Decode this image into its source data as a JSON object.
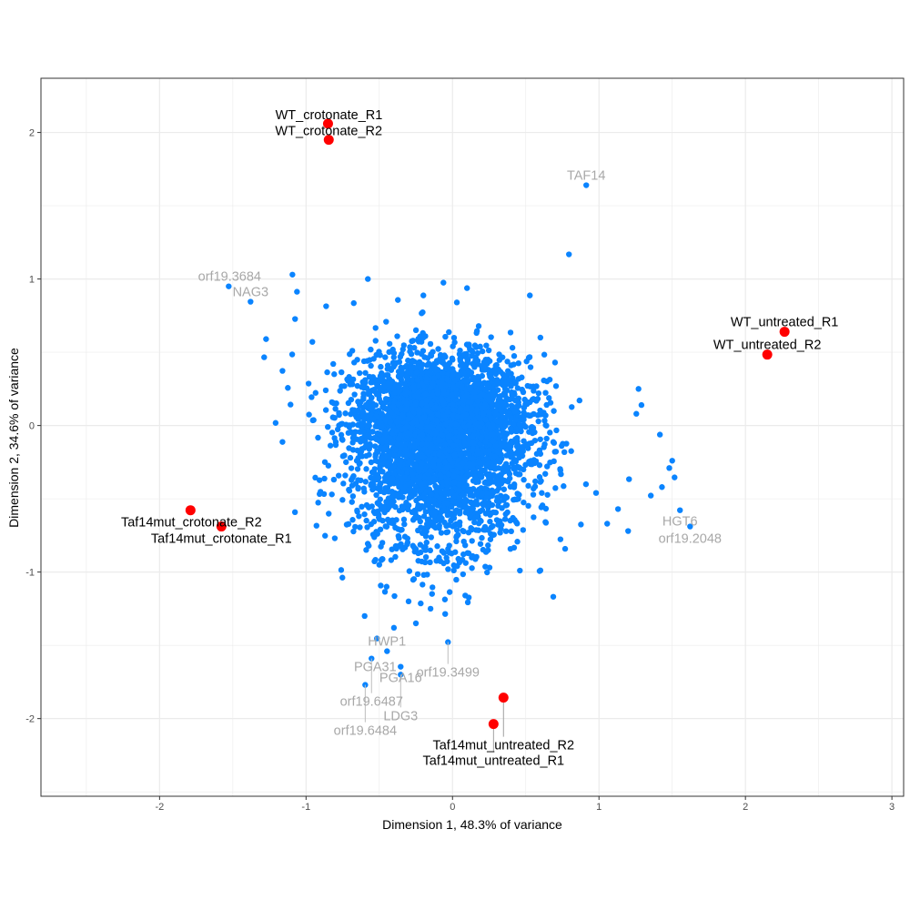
{
  "chart_data": {
    "type": "scatter",
    "title": "",
    "xlabel": "Dimension 1, 48.3% of variance",
    "ylabel": "Dimension 2, 34.6% of variance",
    "xlim": [
      -2.81,
      3.08
    ],
    "ylim": [
      -2.53,
      2.37
    ],
    "x_ticks": [
      "-2",
      "-1",
      "0",
      "1",
      "2",
      "3"
    ],
    "y_ticks": [
      "-2",
      "-1",
      "0",
      "1",
      "2"
    ],
    "grid": true,
    "colors": {
      "genes": "#0a84ff",
      "samples": "#ff0000",
      "gene_labels": "#a8a8a8",
      "grid": "#ebebeb"
    },
    "samples": [
      {
        "name": "WT_crotonate_R1",
        "x": -0.85,
        "y": 2.06
      },
      {
        "name": "WT_crotonate_R2",
        "x": -0.845,
        "y": 1.95
      },
      {
        "name": "WT_untreated_R1",
        "x": 2.267,
        "y": 0.64
      },
      {
        "name": "WT_untreated_R2",
        "x": 2.149,
        "y": 0.484
      },
      {
        "name": "Taf14mut_crotonate_R2",
        "x": -1.789,
        "y": -0.578
      },
      {
        "name": "Taf14mut_crotonate_R1",
        "x": -1.578,
        "y": -0.689
      },
      {
        "name": "Taf14mut_untreated_R2",
        "x": 0.348,
        "y": -1.857
      },
      {
        "name": "Taf14mut_untreated_R1",
        "x": 0.28,
        "y": -2.037
      }
    ],
    "labeled_genes": [
      {
        "name": "TAF14",
        "x": 0.913,
        "y": 1.64
      },
      {
        "name": "orf19.3684",
        "x": -1.528,
        "y": 0.95
      },
      {
        "name": "NAG3",
        "x": -1.379,
        "y": 0.845
      },
      {
        "name": "HGT6",
        "x": 1.553,
        "y": -0.578
      },
      {
        "name": "orf19.2048",
        "x": 1.622,
        "y": -0.689
      },
      {
        "name": "HWP1",
        "x": -0.516,
        "y": -1.453
      },
      {
        "name": "PGA31",
        "x": -0.447,
        "y": -1.54
      },
      {
        "name": "orf19.3499",
        "x": -0.031,
        "y": -1.478
      },
      {
        "name": "PGA16",
        "x": -0.354,
        "y": -1.646
      },
      {
        "name": "orf19.6487",
        "x": -0.553,
        "y": -1.59
      },
      {
        "name": "LDG3",
        "x": -0.354,
        "y": -1.7
      },
      {
        "name": "orf19.6484",
        "x": -0.596,
        "y": -1.77
      }
    ],
    "outlier_genes": [
      [
        -0.578,
        1.0
      ],
      [
        -1.093,
        1.03
      ],
      [
        -1.062,
        0.913
      ],
      [
        -1.273,
        0.59
      ],
      [
        -1.286,
        0.466
      ],
      [
        -1.161,
        0.373
      ],
      [
        -1.106,
        0.143
      ],
      [
        -1.161,
        -0.112
      ],
      [
        -0.87,
        -0.752
      ],
      [
        0.795,
        1.168
      ],
      [
        1.416,
        -0.062
      ],
      [
        1.516,
        -0.354
      ],
      [
        1.354,
        -0.478
      ],
      [
        1.199,
        -0.72
      ],
      [
        1.056,
        -0.67
      ],
      [
        1.255,
        0.08
      ],
      [
        0.46,
        -0.99
      ],
      [
        0.224,
        -0.963
      ],
      [
        -0.05,
        -1.286
      ],
      [
        0.087,
        -1.16
      ],
      [
        -0.957,
        0.571
      ],
      [
        -1.075,
        0.727
      ],
      [
        -0.863,
        0.814
      ],
      [
        -0.373,
        0.857
      ],
      [
        -0.199,
        0.888
      ],
      [
        0.099,
        0.938
      ],
      [
        0.528,
        0.888
      ],
      [
        -0.062,
        0.975
      ],
      [
        1.27,
        0.25
      ],
      [
        1.29,
        0.14
      ],
      [
        1.48,
        -0.29
      ],
      [
        1.5,
        -0.24
      ],
      [
        1.13,
        -0.57
      ],
      [
        0.98,
        -0.46
      ],
      [
        1.43,
        -0.42
      ],
      [
        0.7,
        0.43
      ],
      [
        0.6,
        0.6
      ],
      [
        -0.5,
        -0.95
      ],
      [
        -0.45,
        -1.1
      ],
      [
        -0.3,
        -1.2
      ],
      [
        -0.6,
        -1.3
      ],
      [
        -0.25,
        -1.35
      ],
      [
        -0.15,
        -1.25
      ],
      [
        -0.4,
        -1.38
      ]
    ],
    "gene_cloud": {
      "count": 4200,
      "center": [
        -0.08,
        -0.02
      ],
      "sd": [
        0.3,
        0.24
      ],
      "lower_tail_sd": 0.38
    }
  }
}
